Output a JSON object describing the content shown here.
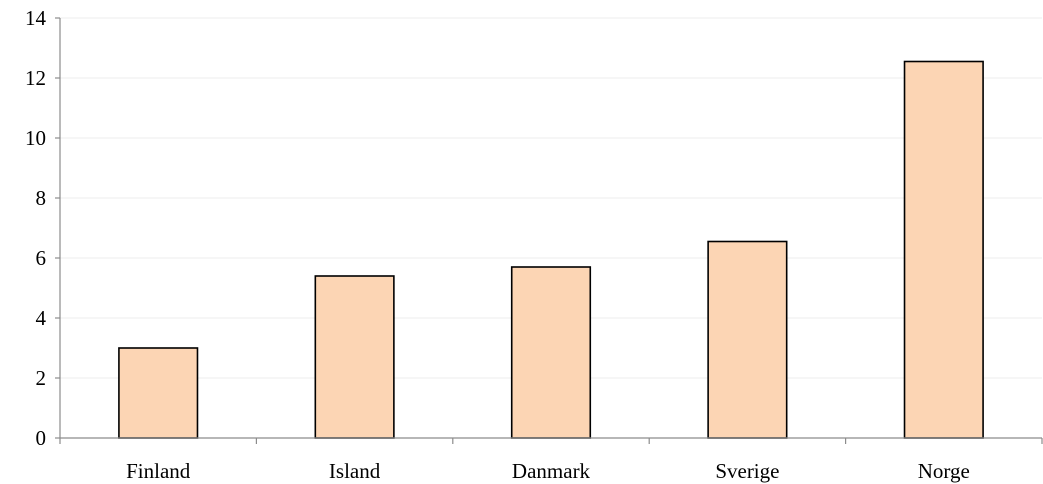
{
  "chart_data": {
    "type": "bar",
    "title": "",
    "xlabel": "",
    "ylabel": "",
    "categories": [
      "Finland",
      "Island",
      "Danmark",
      "Sverige",
      "Norge"
    ],
    "values": [
      3.0,
      5.4,
      5.7,
      6.55,
      12.55
    ],
    "ylim": [
      0,
      14
    ],
    "yticks": [
      "0",
      "2",
      "4",
      "6",
      "8",
      "10",
      "12",
      "14"
    ],
    "grid": true,
    "legend": "none",
    "colors": {
      "bar_fill": "#fcd5b4",
      "bar_stroke": "#000000",
      "axis": "#8c8c8c",
      "grid": "#ececec"
    }
  }
}
